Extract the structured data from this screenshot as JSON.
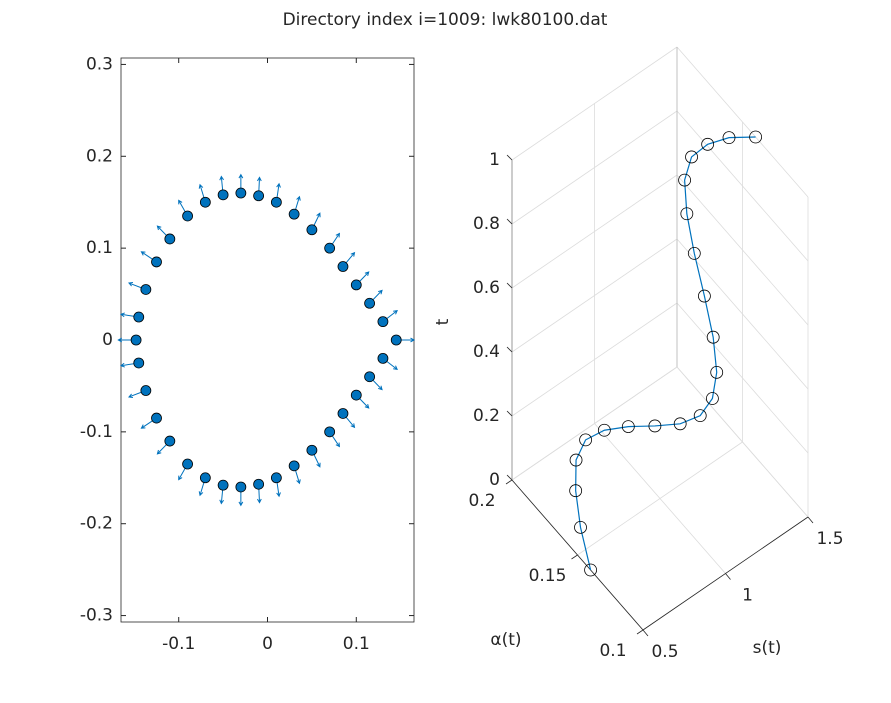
{
  "chart_data": [
    {
      "type": "quiver",
      "title": "Directory index i=1009: lwk80100.dat",
      "xlim": [
        -0.165,
        0.165
      ],
      "ylim": [
        -0.307,
        0.307
      ],
      "xticks": [
        -0.1,
        0,
        0.1
      ],
      "yticks": [
        -0.3,
        -0.2,
        -0.1,
        0,
        0.1,
        0.2,
        0.3
      ],
      "series": [
        {
          "color": "#0072BD",
          "edge_color": "#000000",
          "x": [
            0.145,
            0.13,
            0.115,
            0.1,
            0.085,
            0.07,
            0.05,
            0.03,
            0.01,
            -0.01,
            -0.03,
            -0.05,
            -0.07,
            -0.09,
            -0.11,
            -0.125,
            -0.137,
            -0.145,
            -0.148,
            -0.145,
            -0.137,
            -0.125,
            -0.11,
            -0.09,
            -0.07,
            -0.05,
            -0.03,
            -0.01,
            0.01,
            0.03,
            0.05,
            0.07,
            0.085,
            0.1,
            0.115,
            0.13
          ],
          "y": [
            0,
            0.02,
            0.04,
            0.06,
            0.08,
            0.1,
            0.12,
            0.137,
            0.15,
            0.157,
            0.16,
            0.158,
            0.15,
            0.135,
            0.11,
            0.085,
            0.055,
            0.025,
            0,
            -0.025,
            -0.055,
            -0.085,
            -0.11,
            -0.135,
            -0.15,
            -0.158,
            -0.16,
            -0.157,
            -0.15,
            -0.137,
            -0.12,
            -0.1,
            -0.08,
            -0.06,
            -0.04,
            -0.02
          ],
          "u": [
            0.02,
            0.016,
            0.014,
            0.014,
            0.013,
            0.011,
            0.009,
            0.006,
            0.003,
            0.001,
            0,
            -0.002,
            -0.006,
            -0.01,
            -0.014,
            -0.017,
            -0.019,
            -0.02,
            -0.02,
            -0.02,
            -0.019,
            -0.017,
            -0.014,
            -0.01,
            -0.006,
            -0.002,
            0,
            0.001,
            0.003,
            0.006,
            0.009,
            0.011,
            0.013,
            0.014,
            0.014,
            0.016
          ],
          "v": [
            0,
            0.012,
            0.014,
            0.014,
            0.015,
            0.016,
            0.018,
            0.019,
            0.02,
            0.02,
            0.02,
            0.02,
            0.019,
            0.017,
            0.014,
            0.011,
            0.007,
            0.003,
            0,
            -0.003,
            -0.007,
            -0.011,
            -0.014,
            -0.017,
            -0.019,
            -0.02,
            -0.02,
            -0.02,
            -0.02,
            -0.019,
            -0.018,
            -0.016,
            -0.015,
            -0.014,
            -0.014,
            -0.012
          ]
        }
      ]
    },
    {
      "type": "line3d",
      "xlabel": "s(t)",
      "ylabel": "α(t)",
      "zlabel": "t",
      "xlim": [
        0.5,
        1.5
      ],
      "ylim": [
        0.1,
        0.2
      ],
      "zlim": [
        0,
        1
      ],
      "xticks": [
        0.5,
        1,
        1.5
      ],
      "yticks": [
        0.1,
        0.15,
        0.2
      ],
      "zticks": [
        0,
        0.2,
        0.4,
        0.6,
        0.8,
        1
      ],
      "grid": true,
      "series": [
        {
          "color": "#0072BD",
          "edge_color": "#000000",
          "x": [
            0.5,
            0.55,
            0.6,
            0.65,
            0.7,
            0.75,
            0.8,
            0.85,
            0.9,
            0.95,
            1,
            1.05,
            1.1,
            1.15,
            1.2,
            1.25,
            1.3,
            1.35,
            1.4,
            1.45,
            1.5
          ],
          "y": [
            0.14,
            0.154,
            0.164,
            0.17,
            0.169,
            0.161,
            0.149,
            0.135,
            0.122,
            0.113,
            0.11,
            0.113,
            0.122,
            0.135,
            0.149,
            0.161,
            0.169,
            0.17,
            0.164,
            0.154,
            0.14
          ],
          "z": [
            0,
            0.05,
            0.1,
            0.15,
            0.2,
            0.25,
            0.3,
            0.35,
            0.4,
            0.45,
            0.5,
            0.55,
            0.6,
            0.65,
            0.7,
            0.75,
            0.8,
            0.85,
            0.9,
            0.95,
            1
          ]
        }
      ]
    }
  ]
}
